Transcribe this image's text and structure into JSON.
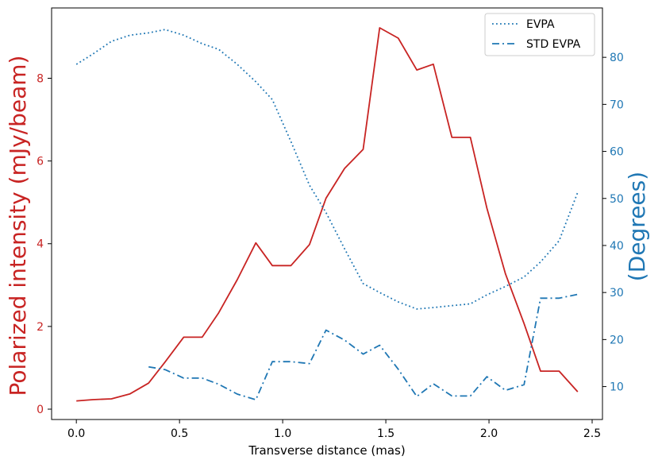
{
  "chart_data": {
    "type": "line",
    "xlabel": "Transverse distance (mas)",
    "ylabel_left": "Polarized intensity (mJy/beam)",
    "ylabel_right": "(Degrees)",
    "xlim": [
      -0.12,
      2.55
    ],
    "ylim_left": [
      -0.25,
      9.7
    ],
    "ylim_right": [
      3.0,
      90.5
    ],
    "x_ticks": [
      0.0,
      0.5,
      1.0,
      1.5,
      2.0,
      2.5
    ],
    "y_left_ticks": [
      0,
      2,
      4,
      6,
      8
    ],
    "y_right_ticks": [
      10,
      20,
      30,
      40,
      50,
      60,
      70,
      80
    ],
    "grid": false,
    "legend_position": "top-right",
    "colors": {
      "left_axis": "#c82423",
      "right_axis": "#1f77b4",
      "frame": "#000000"
    },
    "series": [
      {
        "name": "",
        "axis": "left",
        "style": "solid",
        "color": "#c82423",
        "x": [
          0.0,
          0.08,
          0.17,
          0.26,
          0.35,
          0.43,
          0.52,
          0.61,
          0.69,
          0.78,
          0.87,
          0.95,
          1.04,
          1.13,
          1.21,
          1.3,
          1.39,
          1.47,
          1.56,
          1.65,
          1.73,
          1.82,
          1.91,
          1.99,
          2.08,
          2.17,
          2.25,
          2.34,
          2.43
        ],
        "values": [
          0.2,
          0.23,
          0.25,
          0.37,
          0.63,
          1.14,
          1.74,
          1.74,
          2.33,
          3.13,
          4.02,
          3.47,
          3.47,
          3.98,
          5.1,
          5.82,
          6.28,
          9.22,
          8.97,
          8.2,
          8.34,
          6.57,
          6.57,
          4.86,
          3.27,
          2.07,
          0.92,
          0.92,
          0.42
        ]
      },
      {
        "name": "EVPA",
        "axis": "right",
        "style": "dotted",
        "color": "#1f77b4",
        "x": [
          0.0,
          0.08,
          0.17,
          0.26,
          0.35,
          0.43,
          0.52,
          0.61,
          0.69,
          0.78,
          0.87,
          0.95,
          1.04,
          1.13,
          1.21,
          1.3,
          1.39,
          1.47,
          1.56,
          1.65,
          1.73,
          1.82,
          1.91,
          1.99,
          2.08,
          2.17,
          2.25,
          2.34,
          2.43
        ],
        "values": [
          78.5,
          80.7,
          83.4,
          84.7,
          85.2,
          85.9,
          84.7,
          82.9,
          81.7,
          78.5,
          74.8,
          71.0,
          62.1,
          52.8,
          47.0,
          39.3,
          31.9,
          30.0,
          28.0,
          26.5,
          26.8,
          27.2,
          27.6,
          29.5,
          31.3,
          33.3,
          36.5,
          41.0,
          51.3
        ]
      },
      {
        "name": "STD EVPA",
        "axis": "right",
        "style": "dashdot",
        "color": "#1f77b4",
        "x": [
          0.35,
          0.43,
          0.52,
          0.61,
          0.69,
          0.78,
          0.87,
          0.95,
          1.04,
          1.13,
          1.21,
          1.3,
          1.39,
          1.47,
          1.56,
          1.65,
          1.73,
          1.82,
          1.91,
          1.99,
          2.08,
          2.17,
          2.25,
          2.34,
          2.43
        ],
        "values": [
          14.2,
          13.6,
          11.8,
          11.8,
          10.5,
          8.4,
          7.2,
          15.3,
          15.3,
          14.9,
          22.0,
          19.9,
          16.9,
          18.8,
          13.7,
          7.9,
          10.6,
          8.0,
          8.0,
          12.1,
          9.2,
          10.4,
          28.8,
          28.8,
          29.6
        ]
      }
    ]
  }
}
